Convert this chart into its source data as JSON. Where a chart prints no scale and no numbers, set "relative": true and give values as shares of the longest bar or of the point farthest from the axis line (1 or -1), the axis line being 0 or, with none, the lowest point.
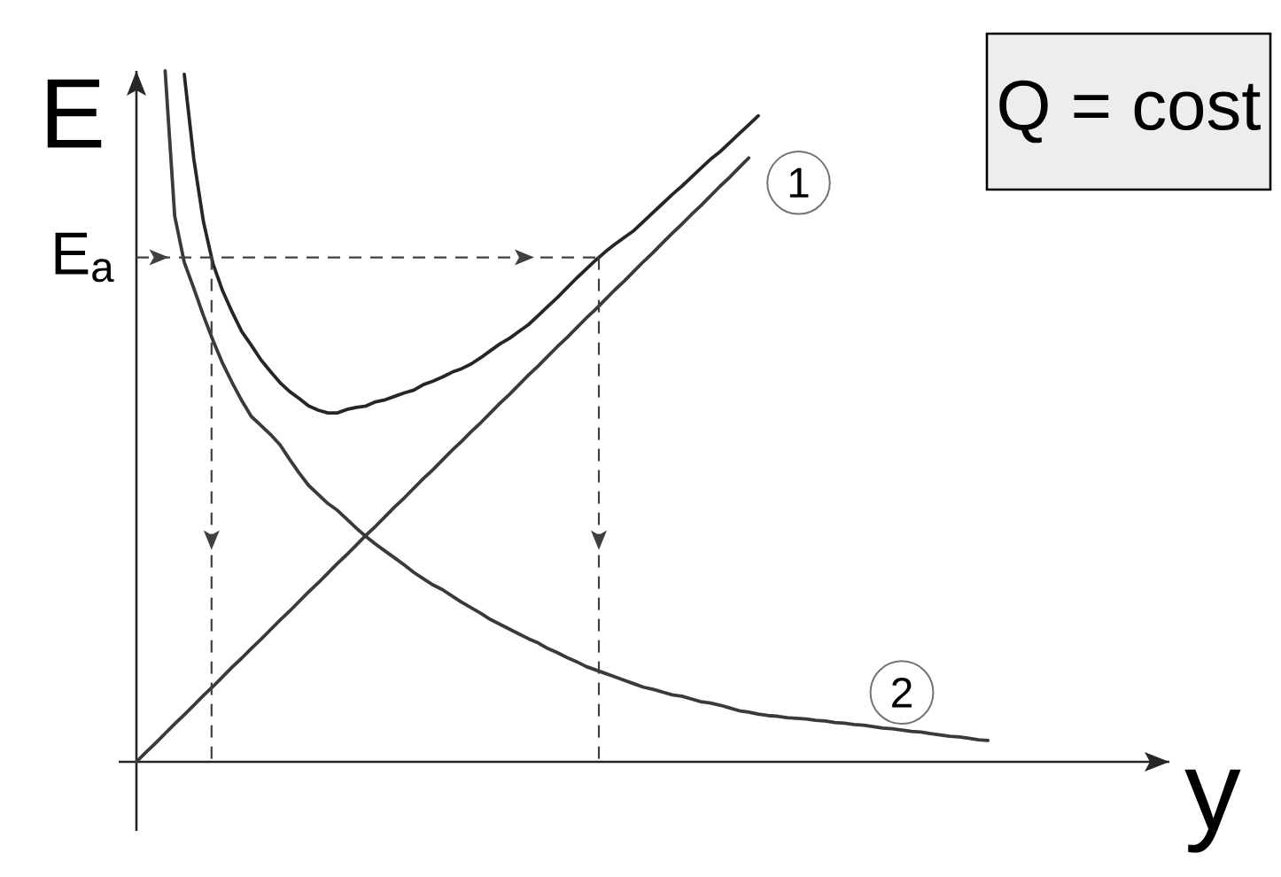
{
  "chart_data": {
    "type": "line",
    "relative": true,
    "xlabel": "y",
    "ylabel": "E",
    "categories": [
      null,
      null,
      null,
      null,
      null,
      null,
      null,
      null,
      null,
      null,
      null,
      null,
      null,
      null,
      null,
      null,
      null,
      null,
      null,
      null,
      null,
      null,
      null,
      null,
      null,
      null,
      null,
      null,
      null,
      null,
      null,
      null,
      null,
      null,
      null,
      null,
      null,
      null,
      null,
      null,
      null,
      null,
      null,
      null,
      null,
      null,
      null,
      null,
      null,
      null,
      null,
      null,
      null,
      null,
      null,
      null,
      null,
      null,
      null,
      null,
      null,
      null,
      null,
      null,
      null,
      null,
      null,
      null,
      null,
      null,
      null,
      null,
      null,
      null,
      null,
      null,
      null,
      null,
      null,
      null,
      null,
      null,
      null,
      null,
      null,
      null,
      null,
      null,
      null,
      null
    ],
    "series": [
      {
        "color": "#262626",
        "values": [
          null,
          null,
          null,
          null,
          null,
          0.995,
          0.872,
          0.782,
          0.721,
          0.682,
          0.651,
          0.623,
          0.603,
          0.582,
          0.565,
          0.549,
          0.536,
          0.526,
          0.515,
          0.509,
          0.505,
          0.505,
          0.51,
          0.513,
          0.515,
          0.521,
          0.524,
          0.529,
          0.534,
          0.538,
          0.546,
          0.551,
          0.557,
          0.564,
          0.569,
          0.576,
          0.585,
          0.595,
          0.605,
          0.613,
          0.623,
          0.633,
          0.646,
          0.659,
          0.672,
          0.686,
          0.7,
          0.713,
          0.726,
          0.738,
          0.749,
          0.759,
          0.769,
          0.782,
          0.795,
          0.808,
          0.821,
          0.833,
          0.846,
          0.859,
          0.872,
          0.883,
          0.896,
          0.909,
          0.922,
          0.935,
          null,
          null,
          null,
          null,
          null,
          null,
          null,
          null,
          null,
          null,
          null,
          null,
          null,
          null,
          null,
          null,
          null,
          null,
          null,
          null,
          null,
          null,
          null,
          null
        ]
      },
      {
        "name": "1",
        "color": "#3a3a3a",
        "values": [
          0,
          0.014,
          0.027,
          0.041,
          0.055,
          0.068,
          0.082,
          0.096,
          0.109,
          0.123,
          0.137,
          0.15,
          0.164,
          0.177,
          0.191,
          0.205,
          0.218,
          0.232,
          0.246,
          0.259,
          0.273,
          0.287,
          0.3,
          0.314,
          0.328,
          0.341,
          0.355,
          0.369,
          0.382,
          0.396,
          0.41,
          0.423,
          0.437,
          0.451,
          0.464,
          0.478,
          0.491,
          0.505,
          0.519,
          0.532,
          0.546,
          0.56,
          0.573,
          0.587,
          0.601,
          0.614,
          0.628,
          0.642,
          0.655,
          0.669,
          0.683,
          0.696,
          0.71,
          0.724,
          0.737,
          0.751,
          0.765,
          0.778,
          0.792,
          0.805,
          0.819,
          0.833,
          0.846,
          0.86,
          0.874,
          null,
          null,
          null,
          null,
          null,
          null,
          null,
          null,
          null,
          null,
          null,
          null,
          null,
          null,
          null,
          null,
          null,
          null,
          null,
          null,
          null,
          null,
          null,
          null,
          null
        ]
      },
      {
        "name": "2",
        "color": "#3a3a3a",
        "values": [
          null,
          null,
          null,
          1.0,
          0.79,
          0.723,
          0.685,
          0.646,
          0.61,
          0.577,
          0.549,
          0.523,
          0.5,
          0.487,
          0.474,
          0.459,
          0.438,
          0.418,
          0.4,
          0.387,
          0.374,
          0.364,
          0.351,
          0.338,
          0.326,
          0.315,
          0.305,
          0.295,
          0.285,
          0.274,
          0.265,
          0.256,
          0.249,
          0.24,
          0.231,
          0.223,
          0.215,
          0.206,
          0.199,
          0.192,
          0.185,
          0.178,
          0.172,
          0.164,
          0.158,
          0.151,
          0.145,
          0.138,
          0.133,
          0.128,
          0.123,
          0.118,
          0.113,
          0.108,
          0.105,
          0.101,
          0.097,
          0.095,
          0.091,
          0.087,
          0.085,
          0.082,
          0.078,
          0.074,
          0.072,
          0.069,
          0.067,
          0.066,
          0.064,
          0.063,
          0.062,
          0.06,
          0.059,
          0.057,
          0.056,
          0.054,
          0.053,
          0.051,
          0.049,
          0.048,
          0.046,
          0.044,
          0.043,
          0.041,
          0.039,
          0.037,
          0.036,
          0.034,
          0.032,
          0.031
        ]
      }
    ],
    "ref_lines": [
      {
        "axis": "y",
        "value": 0.73,
        "label": "E$_{a}$",
        "line_style": "dashed"
      }
    ],
    "annotations": [
      "Q = cost"
    ]
  }
}
